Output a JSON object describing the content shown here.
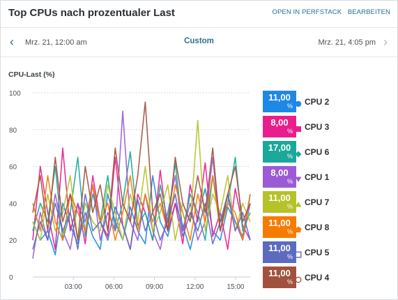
{
  "header": {
    "title": "Top CPUs nach prozentualer Last",
    "open_label": "OPEN IN PERFSTACK",
    "edit_label": "BEARBEITEN"
  },
  "timebar": {
    "start": "Mrz. 21, 12:00 am",
    "range": "Custom",
    "end": "Mrz. 21, 4:05 pm"
  },
  "icons": {
    "prev": "chevron-left-icon",
    "next": "chevron-right-icon"
  },
  "chart_data": {
    "type": "line",
    "ylabel": "CPU-Last (%)",
    "ylim": [
      0,
      100
    ],
    "yticks": [
      "0",
      "20",
      "40",
      "60",
      "80",
      "100"
    ],
    "xlim": [
      "00:00",
      "16:05"
    ],
    "xticks": [
      "03:00",
      "06:00",
      "09:00",
      "12:00",
      "15:00"
    ],
    "grid": true,
    "legend_position": "right",
    "series": [
      {
        "name": "CPU 2",
        "current": "11,00",
        "unit": "%",
        "color": "#1e88e5",
        "marker": "circle-icon",
        "values": [
          30,
          20,
          25,
          12,
          40,
          28,
          18,
          35,
          22,
          15,
          45,
          30,
          20,
          38,
          25,
          18,
          55,
          30,
          22,
          40,
          28,
          15,
          33,
          48,
          25,
          20,
          38,
          30,
          22,
          45
        ]
      },
      {
        "name": "CPU 3",
        "current": "8,00",
        "unit": "%",
        "color": "#e91e8c",
        "marker": "square-icon",
        "values": [
          20,
          60,
          35,
          15,
          70,
          25,
          40,
          18,
          55,
          30,
          22,
          65,
          28,
          15,
          45,
          35,
          20,
          58,
          25,
          40,
          18,
          50,
          30,
          62,
          22,
          35,
          15,
          48,
          28,
          20
        ]
      },
      {
        "name": "CPU 6",
        "current": "17,00",
        "unit": "%",
        "color": "#1aa89a",
        "marker": "diamond-icon",
        "values": [
          25,
          40,
          30,
          60,
          20,
          35,
          65,
          22,
          45,
          30,
          55,
          25,
          40,
          68,
          28,
          35,
          20,
          50,
          30,
          62,
          25,
          45,
          35,
          20,
          55,
          30,
          40,
          65,
          25,
          35
        ]
      },
      {
        "name": "CPU 1",
        "current": "8,00",
        "unit": "%",
        "color": "#9b5bd6",
        "marker": "triangle-down-icon",
        "values": [
          10,
          35,
          20,
          45,
          25,
          15,
          40,
          30,
          50,
          20,
          35,
          25,
          90,
          30,
          20,
          45,
          25,
          15,
          35,
          55,
          25,
          40,
          20,
          30,
          65,
          25,
          45,
          30,
          20,
          40
        ]
      },
      {
        "name": "CPU 7",
        "current": "11,00",
        "unit": "%",
        "color": "#b5c228",
        "marker": "triangle-up-icon",
        "values": [
          30,
          20,
          45,
          25,
          35,
          55,
          20,
          40,
          30,
          25,
          50,
          35,
          20,
          45,
          30,
          60,
          25,
          35,
          50,
          20,
          40,
          30,
          85,
          25,
          45,
          35,
          55,
          25,
          40,
          30
        ]
      },
      {
        "name": "CPU 8",
        "current": "11,00",
        "unit": "%",
        "color": "#f57c00",
        "marker": "pentagon-icon",
        "values": [
          40,
          25,
          55,
          30,
          20,
          45,
          35,
          25,
          50,
          30,
          40,
          20,
          35,
          55,
          25,
          45,
          30,
          40,
          25,
          50,
          35,
          20,
          45,
          30,
          55,
          25,
          40,
          35,
          20,
          45
        ]
      },
      {
        "name": "CPU 5",
        "current": "11,00",
        "unit": "%",
        "color": "#5c6bc0",
        "marker": "square-outline-icon",
        "values": [
          15,
          30,
          20,
          40,
          25,
          35,
          15,
          45,
          25,
          30,
          20,
          38,
          28,
          15,
          42,
          25,
          35,
          20,
          30,
          45,
          22,
          35,
          25,
          40,
          18,
          30,
          45,
          25,
          35,
          20
        ]
      },
      {
        "name": "CPU 4",
        "current": "11,00",
        "unit": "%",
        "color": "#a0523d",
        "marker": "circle-outline-icon",
        "values": [
          35,
          55,
          25,
          65,
          30,
          45,
          20,
          60,
          35,
          50,
          25,
          70,
          40,
          30,
          55,
          95,
          35,
          45,
          25,
          65,
          40,
          30,
          55,
          35,
          70,
          25,
          45,
          60,
          30,
          40
        ]
      }
    ]
  }
}
